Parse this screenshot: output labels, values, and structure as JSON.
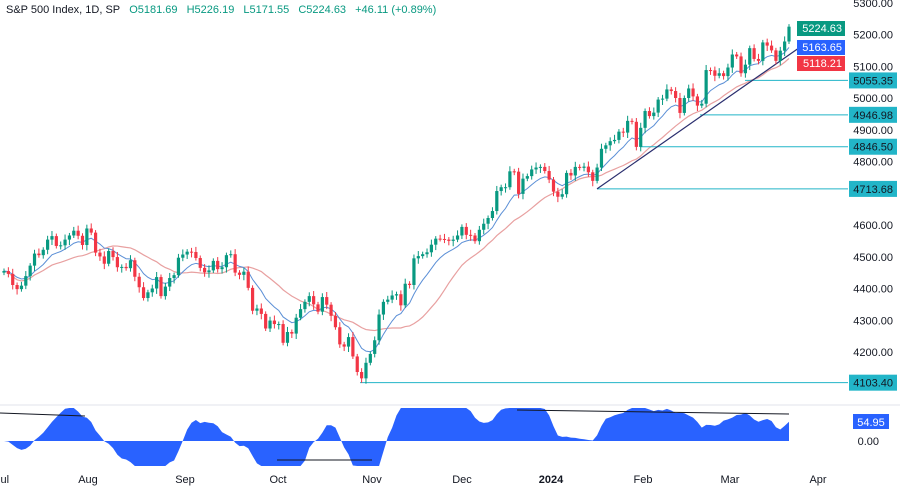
{
  "header": {
    "symbol": "S&P 500 Index, 1D, SP",
    "open": "O5181.69",
    "high": "H5226.19",
    "low": "L5171.55",
    "close": "C5224.63",
    "change": "+46.11 (+0.89%)"
  },
  "colors": {
    "up": "#089981",
    "down": "#f23645",
    "fast_ma": "#5b8fd6",
    "slow_ma": "#e8a0a0",
    "level": "#22b5c8",
    "trendline": "#2a2e6e",
    "oscillator": "#2962ff"
  },
  "chart_data": {
    "type": "candlestick",
    "ylim": [
      4050,
      5300
    ],
    "y_ticks": [
      "5300.00",
      "5200.00",
      "5100.00",
      "5000.00",
      "4900.00",
      "4800.00",
      "4600.00",
      "4500.00",
      "4400.00",
      "4300.00",
      "4200.00"
    ],
    "x_ticks": [
      "Jul",
      "Aug",
      "Sep",
      "Oct",
      "Nov",
      "Dec",
      "2024",
      "Feb",
      "Mar",
      "Apr"
    ],
    "price_labels": {
      "last": "5224.63",
      "fast_ma": "5163.65",
      "slow_ma": "5118.21"
    },
    "levels": [
      "5055.35",
      "4946.98",
      "4846.50",
      "4713.68",
      "4103.40"
    ],
    "oscillator": {
      "value": "54.95",
      "zero": "0.00"
    },
    "closes": [
      4455,
      4446,
      4411,
      4398,
      4409,
      4439,
      4472,
      4510,
      4505,
      4522,
      4554,
      4565,
      4534,
      4536,
      4554,
      4567,
      4582,
      4566,
      4537,
      4589,
      4576,
      4513,
      4501,
      4478,
      4518,
      4499,
      4467,
      4468,
      4464,
      4489,
      4437,
      4404,
      4370,
      4388,
      4400,
      4436,
      4376,
      4406,
      4433,
      4442,
      4497,
      4507,
      4516,
      4515,
      4496,
      4465,
      4451,
      4457,
      4487,
      4461,
      4467,
      4505,
      4508,
      4450,
      4443,
      4453,
      4402,
      4330,
      4337,
      4320,
      4274,
      4299,
      4288,
      4288,
      4229,
      4263,
      4258,
      4308,
      4335,
      4358,
      4376,
      4350,
      4327,
      4373,
      4349,
      4314,
      4278,
      4224,
      4217,
      4247,
      4186,
      4137,
      4117,
      4166,
      4194,
      4237,
      4318,
      4358,
      4365,
      4378,
      4382,
      4347,
      4415,
      4411,
      4495,
      4502,
      4508,
      4514,
      4538,
      4557,
      4556,
      4554,
      4550,
      4554,
      4567,
      4594,
      4569,
      4567,
      4549,
      4585,
      4604,
      4622,
      4644,
      4707,
      4719,
      4719,
      4769,
      4768,
      4698,
      4746,
      4754,
      4775,
      4781,
      4783,
      4770,
      4743,
      4705,
      4689,
      4697,
      4764,
      4756,
      4783,
      4780,
      4784,
      4766,
      4739,
      4781,
      4840,
      4851,
      4864,
      4868,
      4894,
      4891,
      4928,
      4925,
      4846,
      4906,
      4959,
      4943,
      4954,
      4995,
      4998,
      5027,
      5022,
      5000,
      4953,
      5000,
      5030,
      5005,
      4976,
      4982,
      5088,
      5087,
      5070,
      5078,
      5069,
      5096,
      5137,
      5131,
      5078,
      5105,
      5157,
      5123,
      5117,
      5175,
      5165,
      5150,
      5117,
      5149,
      5178,
      5224.63
    ]
  }
}
